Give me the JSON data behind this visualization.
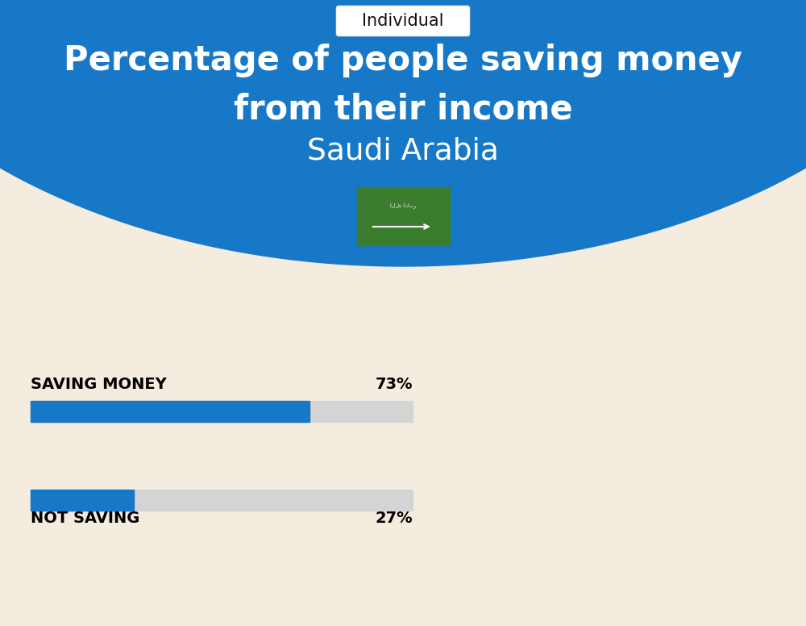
{
  "title_line1": "Percentage of people saving money",
  "title_line2": "from their income",
  "subtitle": "Saudi Arabia",
  "tab_label": "Individual",
  "bg_blue": "#1878c8",
  "bg_cream": "#f5ece0",
  "bar_blue": "#1878c8",
  "bar_gray": "#d4d4d4",
  "bar1_label": "SAVING MONEY",
  "bar1_value": 73,
  "bar1_pct": "73%",
  "bar2_label": "NOT SAVING",
  "bar2_value": 27,
  "bar2_pct": "27%",
  "white": "#ffffff",
  "black": "#000000",
  "flag_green": "#3a7d2c",
  "tab_box_color": "#ffffff",
  "tab_text_color": "#111111",
  "fig_w": 10.0,
  "fig_h": 7.76,
  "dpi": 100
}
